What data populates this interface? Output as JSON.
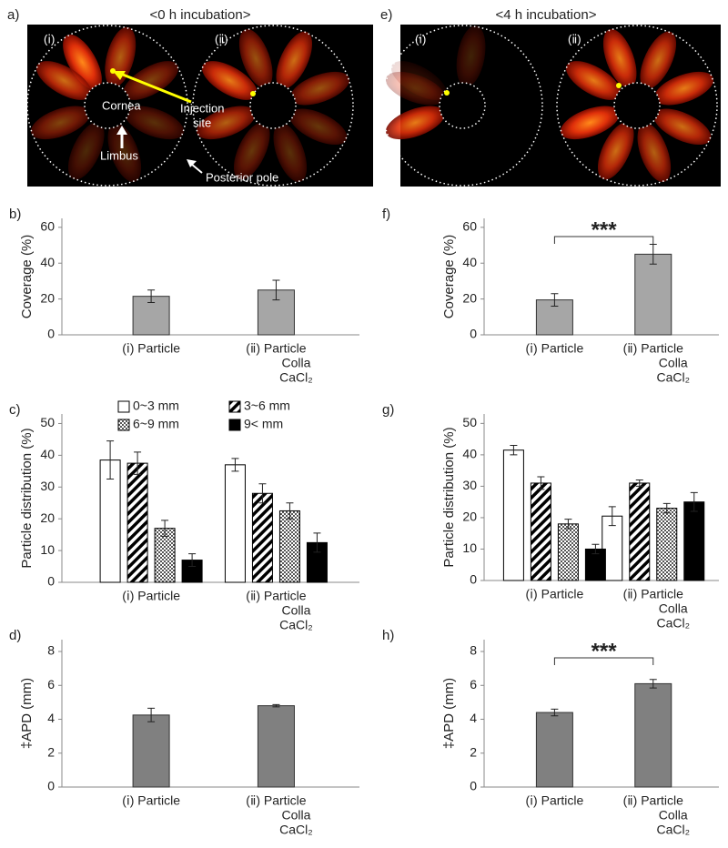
{
  "figure": {
    "panel_a": "a)",
    "title_a": "<0 h incubation>",
    "panel_e": "e)",
    "title_e": "<4 h incubation>",
    "labels_a": {
      "i": "(ⅰ)",
      "ii": "(ⅱ)",
      "cornea": "Cornea",
      "injection": [
        "Injection",
        "site"
      ],
      "limbus": "Limbus",
      "posterior": "Posterior pole"
    },
    "labels_e": {
      "i": "(ⅰ)",
      "ii": "(ⅱ)"
    }
  },
  "chart_data": [
    {
      "type": "bar",
      "panel": "b)",
      "ylabel": "Coverage (%)",
      "categories": [
        [
          "(ⅰ) Particle"
        ],
        [
          "(ⅱ) Particle",
          "Colla",
          "CaCl₂"
        ]
      ],
      "values": [
        21.5,
        25
      ],
      "errors": [
        3.5,
        5.5
      ],
      "color": "#a6a6a6",
      "ylim": [
        0,
        65
      ],
      "yticks": [
        0,
        20,
        40,
        60
      ]
    },
    {
      "type": "bar",
      "panel": "c)",
      "ylabel": "Particle distribution (%)",
      "categories": [
        [
          "(ⅰ) Particle"
        ],
        [
          "(ⅱ) Particle",
          "Colla",
          "CaCl₂"
        ]
      ],
      "series": [
        {
          "name": "0~3 mm",
          "fill": "white",
          "values": [
            38.5,
            37
          ],
          "errors": [
            6,
            2
          ]
        },
        {
          "name": "3~6 mm",
          "fill": "hatch",
          "values": [
            37.5,
            28
          ],
          "errors": [
            3.5,
            3
          ]
        },
        {
          "name": "6~9 mm",
          "fill": "checker",
          "values": [
            17,
            22.5
          ],
          "errors": [
            2.5,
            2.5
          ]
        },
        {
          "name": "9< mm",
          "fill": "black",
          "values": [
            7,
            12.5
          ],
          "errors": [
            2,
            3
          ]
        }
      ],
      "legend": true,
      "ylim": [
        0,
        53
      ],
      "yticks": [
        0,
        10,
        20,
        30,
        40,
        50
      ]
    },
    {
      "type": "bar",
      "panel": "d)",
      "ylabel": "‡APD (mm)",
      "categories": [
        [
          "(ⅰ) Particle"
        ],
        [
          "(ⅱ) Particle",
          "Colla",
          "CaCl₂"
        ]
      ],
      "values": [
        4.25,
        4.8
      ],
      "errors": [
        0.4,
        0.07
      ],
      "color": "#808080",
      "ylim": [
        0,
        8.7
      ],
      "yticks": [
        0,
        2,
        4,
        6,
        8
      ]
    },
    {
      "type": "bar",
      "panel": "f)",
      "ylabel": "Coverage (%)",
      "categories": [
        [
          "(ⅰ) Particle"
        ],
        [
          "(ⅱ) Particle",
          "Colla",
          "CaCl₂"
        ]
      ],
      "values": [
        19.5,
        45
      ],
      "errors": [
        3.5,
        5.5
      ],
      "color": "#a6a6a6",
      "annotation": {
        "text": "***",
        "from": 0,
        "to": 1
      },
      "ylim": [
        0,
        65
      ],
      "yticks": [
        0,
        20,
        40,
        60
      ]
    },
    {
      "type": "bar",
      "panel": "g)",
      "ylabel": "Particle distribution (%)",
      "categories": [
        [
          "(ⅰ) Particle"
        ],
        [
          "(ⅱ) Particle",
          "Colla",
          "CaCl₂"
        ]
      ],
      "series": [
        {
          "fill": "white",
          "values": [
            41.5,
            20.5
          ],
          "errors": [
            1.5,
            3
          ]
        },
        {
          "fill": "hatch",
          "values": [
            31,
            31
          ],
          "errors": [
            2,
            1
          ]
        },
        {
          "fill": "checker",
          "values": [
            18,
            23
          ],
          "errors": [
            1.5,
            1.5
          ]
        },
        {
          "fill": "black",
          "values": [
            10,
            25
          ],
          "errors": [
            1.5,
            3
          ]
        }
      ],
      "legend": false,
      "ylim": [
        0,
        53
      ],
      "yticks": [
        0,
        10,
        20,
        30,
        40,
        50
      ]
    },
    {
      "type": "bar",
      "panel": "h)",
      "ylabel": "‡APD (mm)",
      "categories": [
        [
          "(ⅰ) Particle"
        ],
        [
          "(ⅱ) Particle",
          "Colla",
          "CaCl₂"
        ]
      ],
      "values": [
        4.4,
        6.1
      ],
      "errors": [
        0.2,
        0.25
      ],
      "color": "#808080",
      "annotation": {
        "text": "***",
        "from": 0,
        "to": 1
      },
      "ylim": [
        0,
        8.7
      ],
      "yticks": [
        0,
        2,
        4,
        6,
        8
      ]
    }
  ]
}
